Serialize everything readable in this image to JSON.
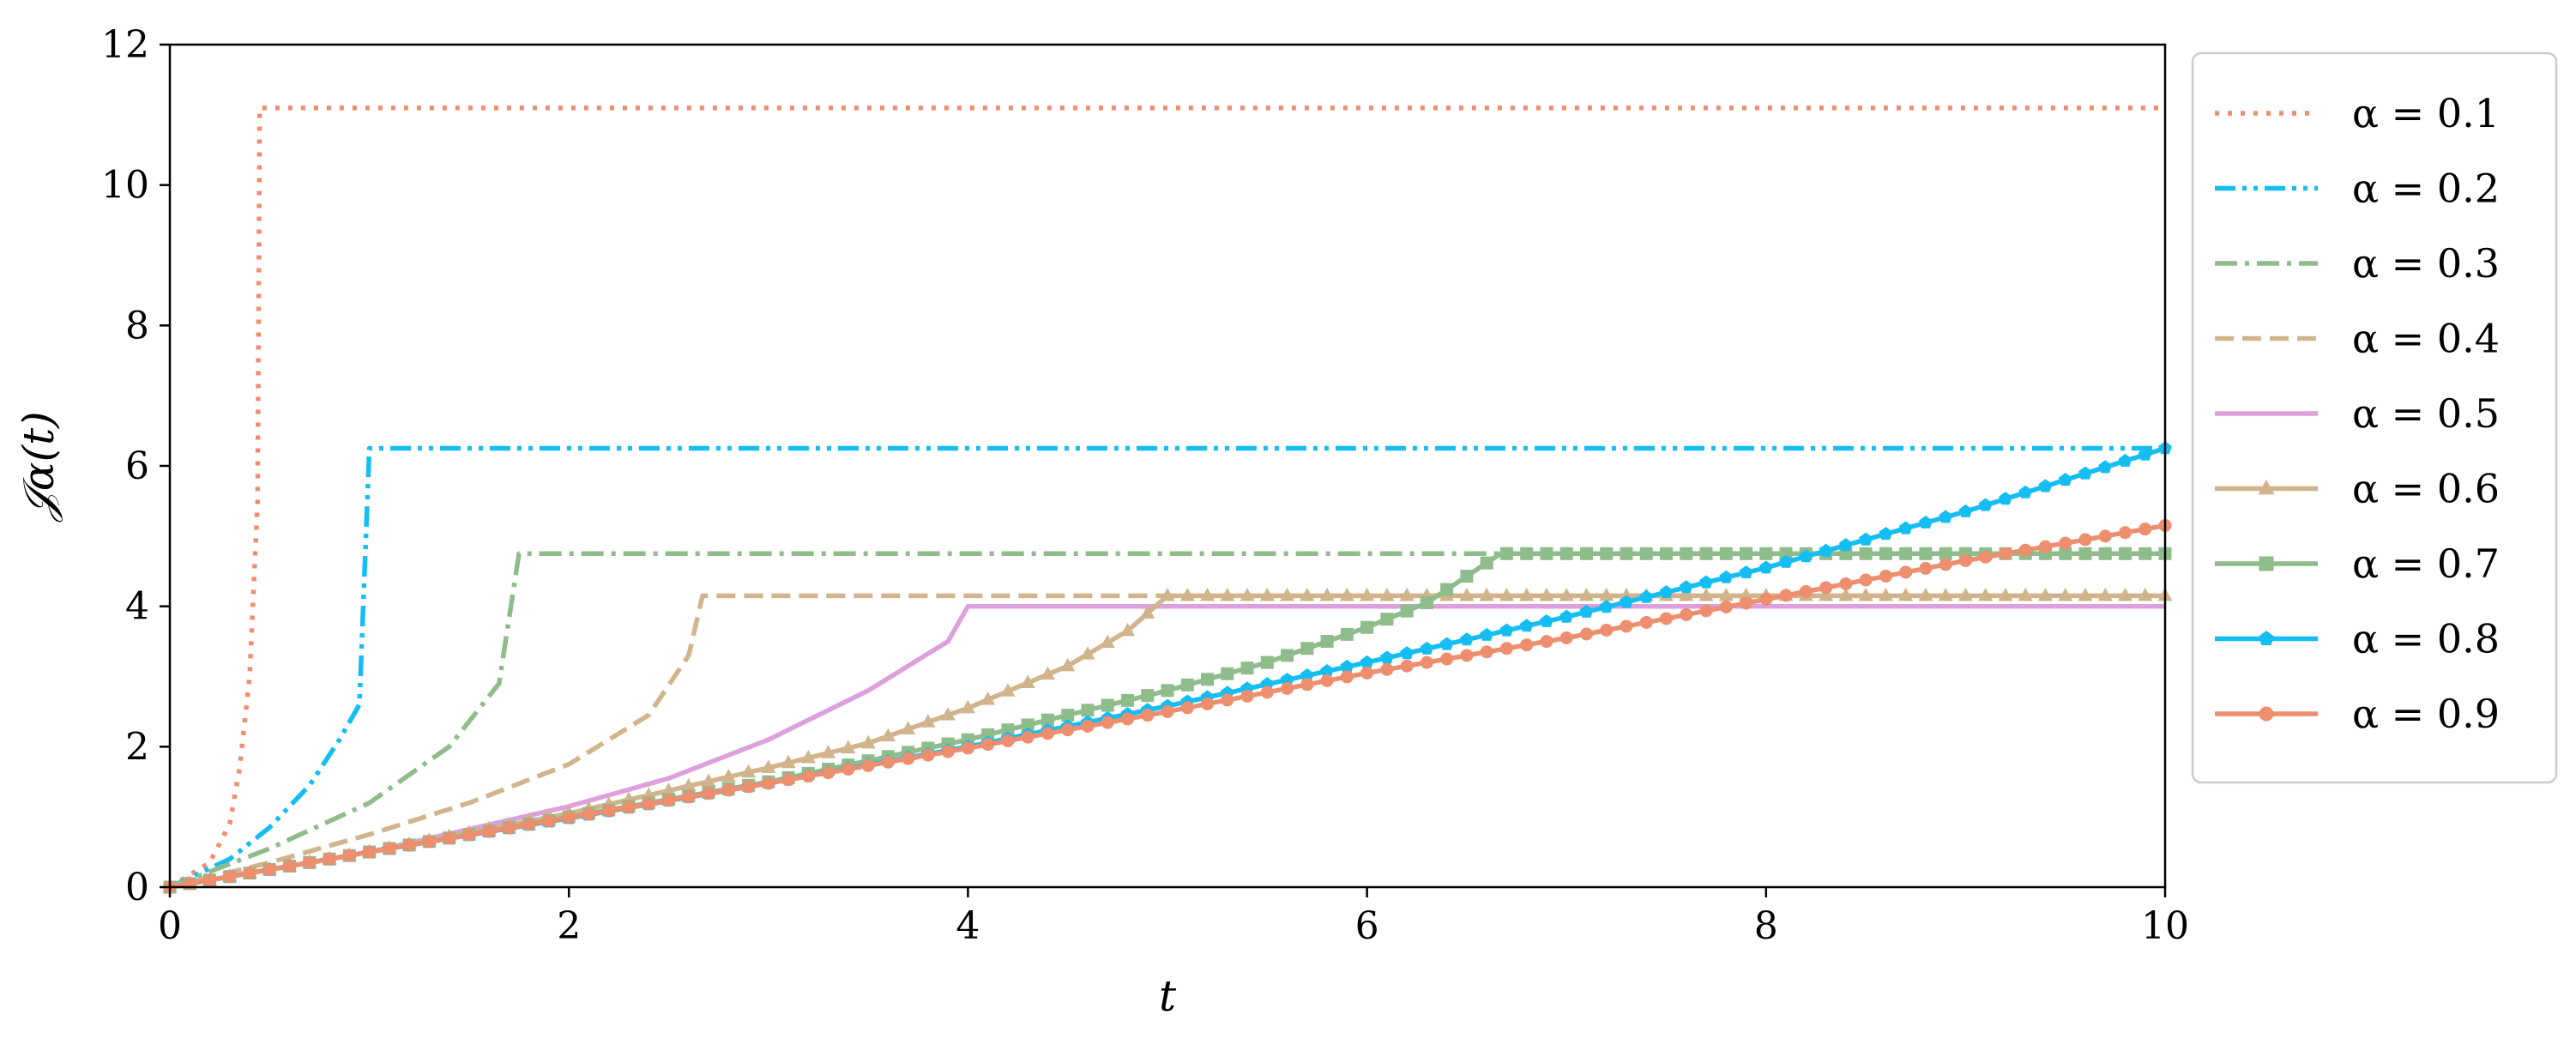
{
  "chart_data": {
    "type": "line",
    "xlabel": "t",
    "ylabel": "𝒥α(t)",
    "xlim": [
      0,
      10
    ],
    "ylim": [
      0,
      12
    ],
    "xticks": [
      "0",
      "2",
      "4",
      "6",
      "8",
      "10"
    ],
    "yticks": [
      "0",
      "2",
      "4",
      "6",
      "8",
      "10",
      "12"
    ],
    "grid": false,
    "legend_position": "outside-right",
    "series": [
      {
        "name": "α = 0.1",
        "color": "#ed8e6f",
        "dash": "dotted",
        "marker": "none",
        "x": [
          0,
          0.2,
          0.3,
          0.35,
          0.4,
          0.44,
          0.45,
          10
        ],
        "y": [
          0,
          0.35,
          0.9,
          1.7,
          3.0,
          5.5,
          11.1,
          11.1
        ]
      },
      {
        "name": "α = 0.2",
        "color": "#14bdf2",
        "dash": "dashdotdot",
        "marker": "none",
        "x": [
          0,
          0.3,
          0.5,
          0.7,
          0.85,
          0.95,
          1.0,
          10
        ],
        "y": [
          0,
          0.4,
          0.85,
          1.45,
          2.1,
          2.6,
          6.25,
          6.25
        ]
      },
      {
        "name": "α = 0.3",
        "color": "#8fbc8b",
        "dash": "dashdot",
        "marker": "none",
        "x": [
          0,
          0.5,
          1.0,
          1.4,
          1.65,
          1.75,
          10
        ],
        "y": [
          0,
          0.55,
          1.2,
          2.0,
          2.9,
          4.75,
          4.75
        ]
      },
      {
        "name": "α = 0.4",
        "color": "#d2b48c",
        "dash": "dashed",
        "marker": "none",
        "x": [
          0,
          0.5,
          1.0,
          1.5,
          2.0,
          2.4,
          2.6,
          2.67,
          10
        ],
        "y": [
          0,
          0.35,
          0.75,
          1.2,
          1.75,
          2.45,
          3.3,
          4.15,
          4.15
        ]
      },
      {
        "name": "α = 0.5",
        "color": "#dda0dd",
        "dash": "solid",
        "marker": "none",
        "x": [
          0,
          1,
          2,
          2.5,
          3,
          3.5,
          3.9,
          4.0,
          10
        ],
        "y": [
          0,
          0.5,
          1.15,
          1.55,
          2.1,
          2.8,
          3.5,
          4.0,
          4.0
        ]
      },
      {
        "name": "α = 0.6",
        "color": "#d2b48c",
        "dash": "solid",
        "marker": "triangle",
        "x": [
          0,
          1,
          2,
          3,
          3.5,
          4,
          4.5,
          4.8,
          5.0,
          10
        ],
        "y": [
          0,
          0.5,
          1.05,
          1.7,
          2.05,
          2.55,
          3.15,
          3.65,
          4.15,
          4.15
        ]
      },
      {
        "name": "α = 0.7",
        "color": "#8fbc8b",
        "dash": "solid",
        "marker": "square",
        "x": [
          0,
          1,
          2,
          3,
          4,
          5,
          5.5,
          6,
          6.3,
          6.67,
          10
        ],
        "y": [
          0,
          0.5,
          1.0,
          1.5,
          2.1,
          2.8,
          3.2,
          3.7,
          4.05,
          4.75,
          4.75
        ]
      },
      {
        "name": "α = 0.8",
        "color": "#14bdf2",
        "dash": "solid",
        "marker": "pentagon",
        "x": [
          0,
          1,
          2,
          3,
          4,
          5,
          6,
          7,
          8,
          9,
          10
        ],
        "y": [
          0,
          0.5,
          0.98,
          1.48,
          2.0,
          2.58,
          3.2,
          3.85,
          4.55,
          5.35,
          6.25
        ]
      },
      {
        "name": "α = 0.9",
        "color": "#ed8e6f",
        "dash": "solid",
        "marker": "circle",
        "x": [
          0,
          1,
          2,
          3,
          4,
          5,
          6,
          7,
          8,
          9,
          10
        ],
        "y": [
          0,
          0.5,
          0.99,
          1.48,
          1.98,
          2.5,
          3.05,
          3.55,
          4.1,
          4.65,
          5.15
        ]
      }
    ]
  }
}
